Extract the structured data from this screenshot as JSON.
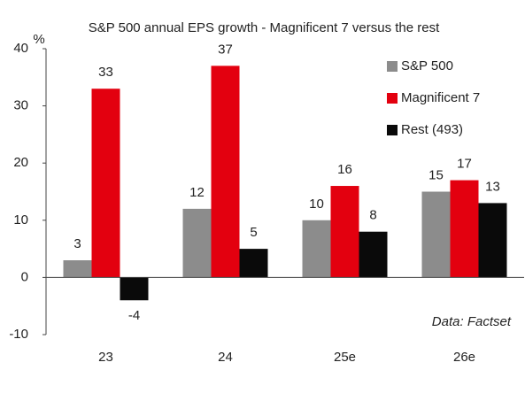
{
  "chart_data": {
    "type": "bar",
    "title": "S&P 500 annual EPS growth - Magnificent 7 versus the rest",
    "y_label": "%",
    "annotation": "Data: Factset",
    "categories": [
      "23",
      "24",
      "25e",
      "26e"
    ],
    "series": [
      {
        "name": "S&P 500",
        "color": "#8c8c8c",
        "values": [
          3,
          12,
          10,
          15
        ]
      },
      {
        "name": "Magnificent 7",
        "color": "#e3000f",
        "values": [
          33,
          37,
          16,
          17
        ]
      },
      {
        "name": "Rest (493)",
        "color": "#0a0a0a",
        "values": [
          -4,
          5,
          8,
          13
        ]
      }
    ],
    "ylim": [
      -10,
      40
    ],
    "yticks": [
      -10,
      0,
      10,
      20,
      30,
      40
    ],
    "legend": "top-right",
    "grid": false
  }
}
